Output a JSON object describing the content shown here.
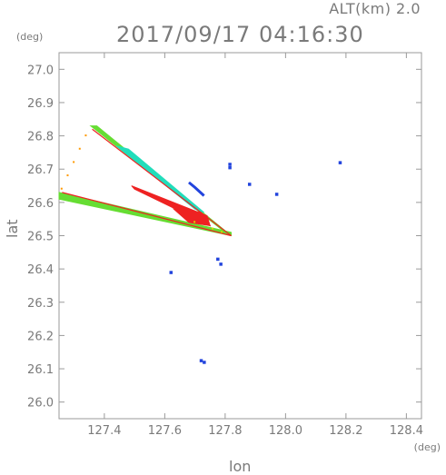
{
  "header": {
    "alt_label": "ALT(km) 2.0",
    "timestamp": "2017/09/17 04:16:30"
  },
  "chart_data": {
    "type": "scatter",
    "title": "2017/09/17 04:16:30",
    "xlabel": "lon",
    "ylabel": "lat",
    "x_unit": "(deg)",
    "y_unit": "(deg)",
    "xlim": [
      127.25,
      128.45
    ],
    "ylim": [
      25.95,
      27.05
    ],
    "x_ticks": [
      127.4,
      127.6,
      127.8,
      128.0,
      128.2,
      128.4
    ],
    "x_tick_labels": [
      "127.4",
      "127.6",
      "127.8",
      "128.0",
      "128.2",
      "128.4"
    ],
    "y_ticks": [
      26.0,
      26.1,
      26.2,
      26.3,
      26.4,
      26.5,
      26.6,
      26.7,
      26.8,
      26.9,
      27.0
    ],
    "y_tick_labels": [
      "26.0",
      "26.1",
      "26.2",
      "26.3",
      "26.4",
      "26.5",
      "26.6",
      "26.7",
      "26.8",
      "26.9",
      "27.0"
    ],
    "grid": false,
    "colors": {
      "red": "#ee2222",
      "orange": "#ff9900",
      "yellow": "#d8d800",
      "green": "#66dd33",
      "cyan": "#22ddbb",
      "blue": "#2244dd"
    },
    "series": [
      {
        "color": "green",
        "marker": "filled-band",
        "points": [
          [
            127.25,
            26.63
          ],
          [
            127.25,
            26.61
          ],
          [
            127.82,
            26.5
          ],
          [
            127.82,
            26.51
          ]
        ]
      },
      {
        "color": "green",
        "marker": "filled-band",
        "points": [
          [
            127.355,
            26.83
          ],
          [
            127.375,
            26.83
          ],
          [
            127.82,
            26.5
          ],
          [
            127.8,
            26.51
          ]
        ]
      },
      {
        "color": "cyan",
        "marker": "filled-band",
        "points": [
          [
            127.44,
            26.77
          ],
          [
            127.48,
            26.76
          ],
          [
            127.73,
            26.57
          ],
          [
            127.7,
            26.58
          ]
        ]
      },
      {
        "color": "red",
        "marker": "line",
        "points": [
          [
            127.36,
            26.82
          ],
          [
            127.82,
            26.5
          ]
        ]
      },
      {
        "color": "red",
        "marker": "line",
        "points": [
          [
            127.26,
            26.63
          ],
          [
            127.82,
            26.5
          ]
        ]
      },
      {
        "color": "red",
        "marker": "filled-band",
        "points": [
          [
            127.49,
            26.65
          ],
          [
            127.5,
            26.64
          ],
          [
            127.75,
            26.53
          ],
          [
            127.74,
            26.56
          ]
        ]
      },
      {
        "color": "red",
        "marker": "filled-band",
        "points": [
          [
            127.63,
            26.58
          ],
          [
            127.72,
            26.57
          ],
          [
            127.75,
            26.53
          ],
          [
            127.68,
            26.54
          ]
        ]
      },
      {
        "color": "orange",
        "marker": "dots",
        "points": [
          [
            127.34,
            26.8
          ],
          [
            127.32,
            26.76
          ],
          [
            127.3,
            26.72
          ],
          [
            127.28,
            26.68
          ],
          [
            127.26,
            26.64
          ]
        ]
      },
      {
        "color": "yellow",
        "marker": "dots",
        "points": [
          [
            127.7,
            26.54
          ],
          [
            127.76,
            26.52
          ],
          [
            127.79,
            26.51
          ]
        ]
      },
      {
        "color": "blue",
        "marker": "line",
        "points": [
          [
            127.68,
            26.66
          ],
          [
            127.7,
            26.645
          ],
          [
            127.73,
            26.62
          ]
        ]
      },
      {
        "color": "blue",
        "marker": "dots",
        "points": [
          [
            127.815,
            26.715
          ],
          [
            127.815,
            26.705
          ],
          [
            128.18,
            26.72
          ],
          [
            127.88,
            26.655
          ],
          [
            127.97,
            26.625
          ],
          [
            127.775,
            26.43
          ],
          [
            127.785,
            26.415
          ],
          [
            127.62,
            26.39
          ],
          [
            127.73,
            26.12
          ],
          [
            127.72,
            26.125
          ]
        ]
      }
    ]
  }
}
